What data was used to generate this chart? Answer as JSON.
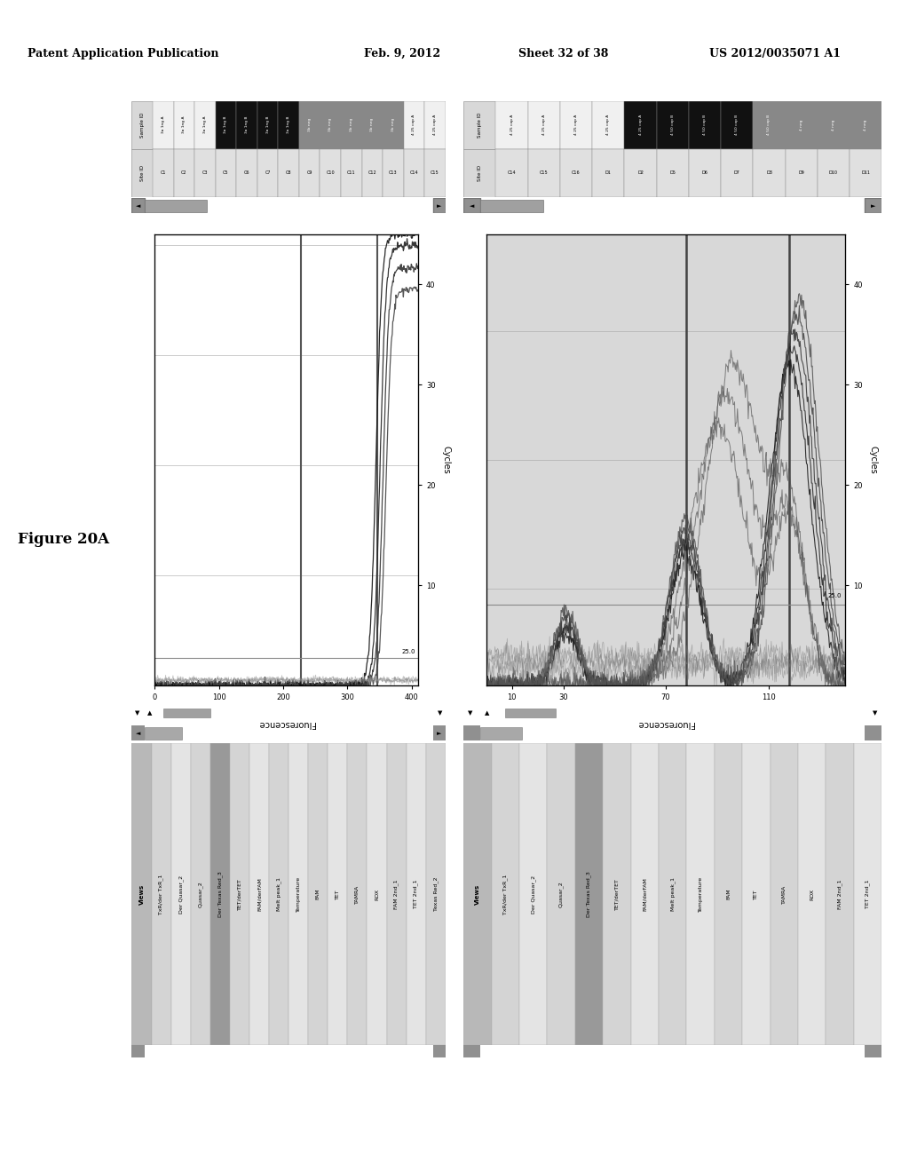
{
  "header": {
    "left": "Patent Application Publication",
    "mid1": "Feb. 9, 2012",
    "mid2": "Sheet 32 of 38",
    "right": "US 2012/0035071 A1"
  },
  "figure_label": "Figure 20A",
  "left_panel": {
    "site_ids": [
      "C1",
      "C2",
      "C3",
      "C5",
      "C6",
      "C7",
      "C8",
      "C9",
      "C10",
      "C11",
      "C12",
      "C13",
      "C14",
      "C15"
    ],
    "sample_ids": [
      "3a 1ng A",
      "3a 1ng A",
      "3a 1ng A",
      "3a 1ng B",
      "3a 1ng B",
      "3a 1ng B",
      "3a 1ng B",
      "3b neg",
      "3b neg",
      "3b neg",
      "3b neg",
      "3b neg",
      "4 25 cop A",
      "4 25 cop A"
    ],
    "dark_rows": [
      3,
      4,
      5,
      6
    ],
    "gray_rows": [
      7,
      8,
      9,
      10,
      11
    ],
    "yticks": [
      0,
      100,
      200,
      300,
      400
    ],
    "xticks": [
      10,
      20,
      30,
      40
    ],
    "ymax": 400,
    "xmax": 45,
    "threshold": 25.0,
    "vline1": 25,
    "vline2": 38
  },
  "right_panel": {
    "site_ids": [
      "C14",
      "C15",
      "C16",
      "D1",
      "D2",
      "D5",
      "D6",
      "D7",
      "D8",
      "D9",
      "D10",
      "D11"
    ],
    "sample_ids": [
      "4 25 cop A",
      "4 25 cop A",
      "4 25 cop A",
      "4 25 cop A",
      "4 25 cop A",
      "4 50 cop B",
      "4 50 cop B",
      "4 50 cop B",
      "4 50 cop B",
      "4 neg",
      "4 neg",
      "4 neg"
    ],
    "dark_rows": [
      4,
      5,
      6,
      7
    ],
    "gray_rows": [
      8,
      9,
      10,
      11
    ],
    "yticks": [
      10,
      30,
      70,
      110
    ],
    "xticks": [
      10,
      20,
      30,
      40
    ],
    "ymax": 140,
    "xmax": 45,
    "threshold": 25.0,
    "vline1": 25,
    "vline2": 38
  },
  "views_left": [
    "Views",
    "TxR/der TxR_1",
    "Der Quasar_2",
    "Quasar_2",
    "Der Texas Red_3",
    "TET/derTET",
    "FAM/derFAM",
    "Melt peak_1",
    "Temperature",
    "FAM",
    "TET",
    "TAMRA",
    "ROX",
    "FAM 2nd_1",
    "TET 2nd_1",
    "Texas Red_2"
  ],
  "views_right": [
    "Views",
    "TxR/der TxR_1",
    "Der Quasar_2",
    "Quasar_2",
    "Der Texas Red_3",
    "TET/derTET",
    "FAM/derFAM",
    "Melt peak_1",
    "Temperature",
    "FAM",
    "TET",
    "TAMRA",
    "ROX",
    "FAM 2nd_1",
    "TET 2nd_1"
  ]
}
